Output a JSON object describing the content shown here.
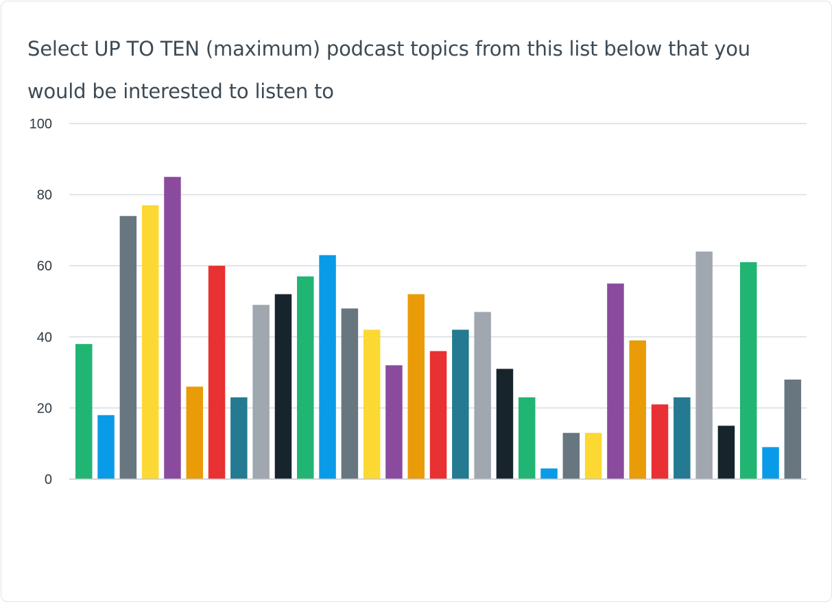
{
  "colors": {
    "title": "#3d4a54",
    "grid": "#d9dcdf",
    "palette": [
      "#21b573",
      "#0a9be8",
      "#687680",
      "#fcd832",
      "#8a4b9e",
      "#e99c08",
      "#e93033",
      "#237a91",
      "#a0a7af",
      "#17242c"
    ]
  },
  "chart_data": {
    "type": "bar",
    "title": "Select UP TO TEN (maximum) podcast topics from this list below that you would be interested to listen to",
    "xlabel": "",
    "ylabel": "",
    "ylim": [
      0,
      100
    ],
    "yticks": [
      "0",
      "20",
      "40",
      "60",
      "80",
      "100"
    ],
    "ytick_values": [
      0,
      20,
      40,
      60,
      80,
      100
    ],
    "grid": true,
    "legend": "none",
    "values": [
      38,
      18,
      74,
      77,
      85,
      26,
      60,
      23,
      49,
      52,
      57,
      63,
      48,
      42,
      32,
      52,
      36,
      42,
      47,
      31,
      23,
      3,
      13,
      13,
      55,
      39,
      21,
      23,
      64,
      15,
      61,
      9,
      28
    ]
  }
}
